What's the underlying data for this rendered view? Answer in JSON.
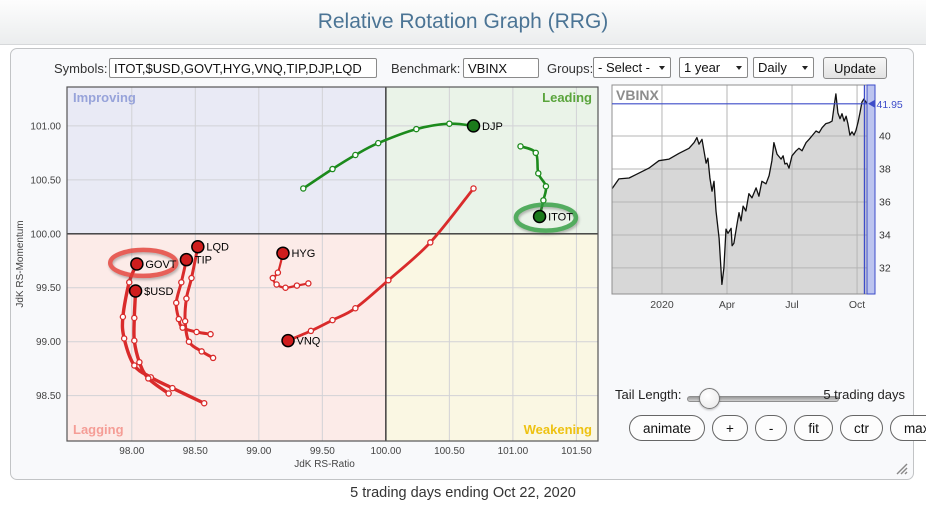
{
  "header": {
    "title": "Relative Rotation Graph (RRG)"
  },
  "toolbar": {
    "symbols_label": "Symbols:",
    "symbols_value": "ITOT,$USD,GOVT,HYG,VNQ,TIP,DJP,LQD",
    "benchmark_label": "Benchmark:",
    "benchmark_value": "VBINX",
    "groups_label": "Groups:",
    "groups_value": "- Select -",
    "period_value": "1 year",
    "frequency_value": "Daily",
    "update_label": "Update"
  },
  "controls": {
    "tail_length_label": "Tail Length:",
    "tail_length_value": "5 trading days",
    "buttons": [
      {
        "id": "animate",
        "label": "animate"
      },
      {
        "id": "zoom-in",
        "label": "+"
      },
      {
        "id": "zoom-out",
        "label": "-"
      },
      {
        "id": "fit",
        "label": "fit"
      },
      {
        "id": "ctr",
        "label": "ctr"
      },
      {
        "id": "max",
        "label": "max"
      }
    ]
  },
  "footer": {
    "caption": "5 trading days ending Oct 22, 2020"
  },
  "chart_data": [
    {
      "type": "scatter",
      "name": "relative-rotation-graph",
      "xlabel": "JdK RS-Ratio",
      "ylabel": "JdK RS-Momentum",
      "xlim": [
        97.49,
        101.67
      ],
      "ylim": [
        98.08,
        101.36
      ],
      "center": [
        100,
        100
      ],
      "x_ticks": [
        98.0,
        98.5,
        99.0,
        99.5,
        100.0,
        100.5,
        101.0,
        101.5
      ],
      "y_ticks": [
        98.5,
        99.0,
        99.5,
        100.0,
        100.5,
        101.0
      ],
      "quadrants": {
        "improving": {
          "label": "Improving",
          "bg": "#e9eaf5",
          "color": "#97a3da"
        },
        "leading": {
          "label": "Leading",
          "bg": "#eaf3e8",
          "color": "#5aa43c"
        },
        "lagging": {
          "label": "Lagging",
          "bg": "#fcebe8",
          "color": "#f59d96"
        },
        "weakening": {
          "label": "Weakening",
          "bg": "#faf7e3",
          "color": "#eec212"
        }
      },
      "series": [
        {
          "symbol": "DJP",
          "color": "#1c8a1c",
          "dot": "#1b7a1b",
          "width": 2.6,
          "tail": [
            [
              99.35,
              100.42
            ],
            [
              99.58,
              100.6
            ],
            [
              99.76,
              100.73
            ],
            [
              99.94,
              100.84
            ],
            [
              100.24,
              100.97
            ],
            [
              100.5,
              101.02
            ],
            [
              100.69,
              101.0
            ]
          ]
        },
        {
          "symbol": "ITOT",
          "color": "#1c8a1c",
          "dot": "#1b7a1b",
          "width": 2.6,
          "tail": [
            [
              101.06,
              100.81
            ],
            [
              101.18,
              100.75
            ],
            [
              101.2,
              100.56
            ],
            [
              101.26,
              100.44
            ],
            [
              101.24,
              100.31
            ],
            [
              101.21,
              100.16
            ]
          ]
        },
        {
          "symbol": "VNQ",
          "color": "#d92b2b",
          "dot": "#cf1d1d",
          "width": 2.8,
          "tail": [
            [
              100.69,
              100.42
            ],
            [
              100.35,
              99.92
            ],
            [
              100.02,
              99.57
            ],
            [
              99.76,
              99.31
            ],
            [
              99.58,
              99.2
            ],
            [
              99.41,
              99.1
            ],
            [
              99.23,
              99.01
            ]
          ]
        },
        {
          "symbol": "HYG",
          "color": "#d92b2b",
          "dot": "#cf1d1d",
          "width": 2.2,
          "tail": [
            [
              99.39,
              99.54
            ],
            [
              99.3,
              99.52
            ],
            [
              99.21,
              99.5
            ],
            [
              99.14,
              99.53
            ],
            [
              99.11,
              99.59
            ],
            [
              99.15,
              99.64
            ],
            [
              99.19,
              99.82
            ]
          ]
        },
        {
          "symbol": "LQD",
          "color": "#d92b2b",
          "dot": "#cf1d1d",
          "width": 3,
          "tail": [
            [
              98.64,
              98.85
            ],
            [
              98.55,
              98.91
            ],
            [
              98.45,
              99.0
            ],
            [
              98.42,
              99.19
            ],
            [
              98.43,
              99.4
            ],
            [
              98.47,
              99.59
            ],
            [
              98.52,
              99.88
            ]
          ]
        },
        {
          "symbol": "TIP",
          "color": "#d92b2b",
          "dot": "#cf1d1d",
          "width": 3,
          "tail": [
            [
              98.62,
              99.07
            ],
            [
              98.51,
              99.09
            ],
            [
              98.4,
              99.13
            ],
            [
              98.37,
              99.21
            ],
            [
              98.35,
              99.36
            ],
            [
              98.39,
              99.55
            ],
            [
              98.43,
              99.76
            ]
          ]
        },
        {
          "symbol": "GOVT",
          "color": "#d92b2b",
          "dot": "#cf1d1d",
          "width": 3.4,
          "tail": [
            [
              98.57,
              98.43
            ],
            [
              98.32,
              98.57
            ],
            [
              98.15,
              98.67
            ],
            [
              98.02,
              98.78
            ],
            [
              97.94,
              99.03
            ],
            [
              97.93,
              99.23
            ],
            [
              97.98,
              99.55
            ],
            [
              98.04,
              99.72
            ]
          ]
        },
        {
          "symbol": "$USD",
          "color": "#d92b2b",
          "dot": "#cf1d1d",
          "width": 3.4,
          "tail": [
            [
              98.29,
              98.52
            ],
            [
              98.13,
              98.66
            ],
            [
              98.06,
              98.81
            ],
            [
              98.02,
              99.01
            ],
            [
              98.02,
              99.22
            ],
            [
              98.03,
              99.47
            ]
          ]
        }
      ],
      "highlights": [
        {
          "symbol": "GOVT",
          "center": [
            98.09,
            99.73
          ],
          "rx": 33,
          "ry": 13,
          "color": "#e23d36"
        },
        {
          "symbol": "ITOT",
          "center": [
            101.26,
            100.15
          ],
          "rx": 30,
          "ry": 13,
          "color": "#2e9b3d"
        }
      ]
    },
    {
      "type": "area",
      "symbol": "VBINX",
      "ylim": [
        30.42,
        43.09
      ],
      "y_ticks": [
        32,
        34,
        36,
        38,
        40
      ],
      "x_ticks": [
        {
          "label": "2020",
          "pos": 0.196
        },
        {
          "label": "Apr",
          "pos": 0.451
        },
        {
          "label": "Jul",
          "pos": 0.706
        },
        {
          "label": "Oct",
          "pos": 0.961
        }
      ],
      "last_price": 41.95,
      "last_price_label": "41.95",
      "accent_color": "#3d4cc9",
      "line_color": "#111111",
      "fill_color": "#d7d7d7",
      "points": [
        [
          0,
          36.8
        ],
        [
          0.027,
          37.4
        ],
        [
          0.067,
          37.45
        ],
        [
          0.106,
          37.75
        ],
        [
          0.145,
          38.05
        ],
        [
          0.184,
          38.5
        ],
        [
          0.224,
          38.6
        ],
        [
          0.263,
          38.95
        ],
        [
          0.302,
          39.25
        ],
        [
          0.322,
          39.6
        ],
        [
          0.333,
          39.9
        ],
        [
          0.341,
          39.5
        ],
        [
          0.353,
          39.8
        ],
        [
          0.369,
          38.35
        ],
        [
          0.376,
          38.65
        ],
        [
          0.384,
          37.45
        ],
        [
          0.392,
          36.65
        ],
        [
          0.4,
          37.25
        ],
        [
          0.408,
          35.45
        ],
        [
          0.42,
          33.8
        ],
        [
          0.427,
          32.0
        ],
        [
          0.431,
          31.0
        ],
        [
          0.439,
          32.0
        ],
        [
          0.447,
          34.35
        ],
        [
          0.455,
          34.1
        ],
        [
          0.467,
          34.4
        ],
        [
          0.471,
          33.35
        ],
        [
          0.478,
          33.5
        ],
        [
          0.49,
          34.65
        ],
        [
          0.498,
          35.35
        ],
        [
          0.506,
          34.85
        ],
        [
          0.514,
          35.75
        ],
        [
          0.525,
          35.45
        ],
        [
          0.537,
          36.5
        ],
        [
          0.549,
          36.25
        ],
        [
          0.565,
          36.85
        ],
        [
          0.576,
          36.35
        ],
        [
          0.588,
          37.25
        ],
        [
          0.604,
          37.1
        ],
        [
          0.616,
          37.6
        ],
        [
          0.627,
          38.5
        ],
        [
          0.635,
          39.6
        ],
        [
          0.647,
          38.9
        ],
        [
          0.663,
          38.6
        ],
        [
          0.671,
          38.8
        ],
        [
          0.678,
          38.3
        ],
        [
          0.686,
          38.35
        ],
        [
          0.694,
          38.05
        ],
        [
          0.706,
          38.8
        ],
        [
          0.722,
          39.1
        ],
        [
          0.733,
          39.25
        ],
        [
          0.745,
          39.1
        ],
        [
          0.761,
          39.6
        ],
        [
          0.773,
          39.8
        ],
        [
          0.784,
          40.0
        ],
        [
          0.8,
          40.3
        ],
        [
          0.812,
          40.2
        ],
        [
          0.824,
          40.5
        ],
        [
          0.839,
          40.75
        ],
        [
          0.851,
          40.8
        ],
        [
          0.863,
          40.9
        ],
        [
          0.871,
          41.8
        ],
        [
          0.878,
          42.55
        ],
        [
          0.886,
          41.4
        ],
        [
          0.894,
          41.05
        ],
        [
          0.902,
          41.35
        ],
        [
          0.91,
          40.9
        ],
        [
          0.918,
          41.2
        ],
        [
          0.925,
          40.75
        ],
        [
          0.933,
          40.05
        ],
        [
          0.941,
          40.25
        ],
        [
          0.949,
          40.05
        ],
        [
          0.957,
          40.35
        ],
        [
          0.965,
          40.85
        ],
        [
          0.973,
          41.45
        ],
        [
          0.98,
          42.05
        ],
        [
          0.988,
          42.25
        ],
        [
          1,
          41.95
        ]
      ]
    }
  ]
}
